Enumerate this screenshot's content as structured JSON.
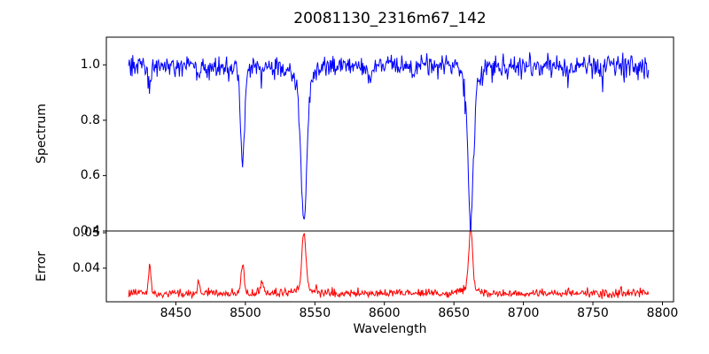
{
  "figure": {
    "background": "#ffffff",
    "axes_color": "#000000"
  },
  "chart_data": {
    "type": "line",
    "title": "20081130_2316m67_142",
    "xlabel": "Wavelength",
    "grid": false,
    "legend": null,
    "xlim": [
      8400,
      8808
    ],
    "x_ticks": [
      8450,
      8500,
      8550,
      8600,
      8650,
      8700,
      8750,
      8800
    ],
    "x_tick_labels": [
      "8450",
      "8500",
      "8550",
      "8600",
      "8650",
      "8700",
      "8750",
      "8800"
    ],
    "data_x_range": [
      8416,
      8790
    ],
    "x_step": 0.5,
    "seed": 1130142,
    "subplots": [
      {
        "name": "spectrum",
        "ylabel": "Spectrum",
        "ylim": [
          0.4,
          1.1
        ],
        "y_ticks": [
          1.0,
          0.8,
          0.6,
          0.4
        ],
        "y_tick_labels": [
          "1.0",
          "0.8",
          "0.6",
          "0.4"
        ],
        "line_color": "#0000ff",
        "continuum": 1.0,
        "noise_sigma": 0.016,
        "absorption_lines": [
          {
            "center": 8431.2,
            "depth": 0.065,
            "sigma": 0.9
          },
          {
            "center": 8466.5,
            "depth": 0.045,
            "sigma": 0.9
          },
          {
            "center": 8498.0,
            "depth": 0.31,
            "sigma": 1.4
          },
          {
            "center": 8498.0,
            "depth": 0.04,
            "sigma": 4.0
          },
          {
            "center": 8512.0,
            "depth": 0.04,
            "sigma": 0.9
          },
          {
            "center": 8542.1,
            "depth": 0.48,
            "sigma": 2.0
          },
          {
            "center": 8542.1,
            "depth": 0.09,
            "sigma": 6.0
          },
          {
            "center": 8590.0,
            "depth": 0.05,
            "sigma": 1.4
          },
          {
            "center": 8621.0,
            "depth": 0.04,
            "sigma": 1.0
          },
          {
            "center": 8662.1,
            "depth": 0.48,
            "sigma": 1.9
          },
          {
            "center": 8662.1,
            "depth": 0.08,
            "sigma": 5.5
          },
          {
            "center": 8688.0,
            "depth": 0.035,
            "sigma": 0.9
          },
          {
            "center": 8713.0,
            "depth": 0.03,
            "sigma": 0.9
          },
          {
            "center": 8736.0,
            "depth": 0.03,
            "sigma": 0.9
          },
          {
            "center": 8757.0,
            "depth": 0.03,
            "sigma": 0.9
          }
        ],
        "notable_features": "Ca II triplet absorption lines near 8498, 8542 and 8662 with minima ~0.65, ~0.43, ~0.43"
      },
      {
        "name": "error",
        "ylabel": "Error",
        "ylim": [
          0.0305,
          0.0505
        ],
        "y_ticks": [
          0.05,
          0.04
        ],
        "y_tick_labels": [
          "0.05",
          "0.04"
        ],
        "line_color": "#ff0000",
        "baseline": 0.0328,
        "noise_sigma": 0.00045,
        "peaks": [
          {
            "center": 8431.2,
            "height": 0.0082,
            "sigma": 0.9
          },
          {
            "center": 8466.5,
            "height": 0.0036,
            "sigma": 0.9
          },
          {
            "center": 8498.0,
            "height": 0.0085,
            "sigma": 1.1
          },
          {
            "center": 8512.0,
            "height": 0.0036,
            "sigma": 0.9
          },
          {
            "center": 8542.1,
            "height": 0.0155,
            "sigma": 1.4
          },
          {
            "center": 8542.1,
            "height": 0.0018,
            "sigma": 5.0
          },
          {
            "center": 8662.1,
            "height": 0.0168,
            "sigma": 1.3
          },
          {
            "center": 8662.1,
            "height": 0.0018,
            "sigma": 5.0
          }
        ],
        "notable_features": "Error spikes to ~0.05 at the wavelengths of the strong absorption lines (8542, 8662), smaller spikes at 8431 and 8498"
      }
    ]
  }
}
